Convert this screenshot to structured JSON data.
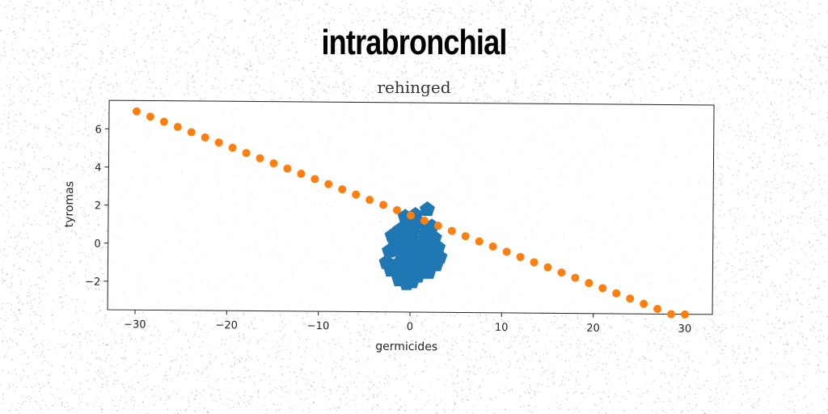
{
  "header": {
    "title": "intrabronchial",
    "subtitle": "rehinged"
  },
  "chart_data": {
    "type": "scatter",
    "title": "rehinged",
    "xlabel": "germicides",
    "ylabel": "tyromas",
    "xlim": [
      -33,
      33
    ],
    "ylim": [
      -3.5,
      7.5
    ],
    "xticks": [
      -30,
      -20,
      -10,
      0,
      10,
      20,
      30
    ],
    "yticks": [
      -2,
      0,
      2,
      4,
      6
    ],
    "grid": false,
    "series": [
      {
        "marker": "pentagon",
        "color": "#1f77b4",
        "points": [
          [
            1.8,
            1.9
          ],
          [
            0.5,
            1.6
          ],
          [
            -0.6,
            1.5
          ],
          [
            -0.4,
            1.1
          ],
          [
            0.9,
            1.2
          ],
          [
            2.3,
            1.0
          ],
          [
            -1.2,
            0.8
          ],
          [
            0.2,
            0.7
          ],
          [
            1.6,
            0.6
          ],
          [
            2.6,
            0.4
          ],
          [
            -2.0,
            0.5
          ],
          [
            -0.9,
            0.3
          ],
          [
            0.6,
            0.2
          ],
          [
            1.9,
            0.1
          ],
          [
            3.0,
            -0.1
          ],
          [
            -1.6,
            0.0
          ],
          [
            -0.3,
            -0.1
          ],
          [
            1.1,
            -0.3
          ],
          [
            2.4,
            -0.4
          ],
          [
            -2.3,
            -0.3
          ],
          [
            -1.0,
            -0.5
          ],
          [
            0.4,
            -0.6
          ],
          [
            1.7,
            -0.8
          ],
          [
            3.2,
            -0.6
          ],
          [
            -2.6,
            -0.9
          ],
          [
            -1.4,
            -1.0
          ],
          [
            0.0,
            -1.1
          ],
          [
            1.3,
            -1.2
          ],
          [
            2.8,
            -1.0
          ],
          [
            -2.1,
            -1.3
          ],
          [
            -0.7,
            -1.5
          ],
          [
            0.8,
            -1.6
          ],
          [
            2.0,
            -1.4
          ],
          [
            -1.2,
            -1.8
          ],
          [
            0.2,
            -1.9
          ],
          [
            -0.4,
            -2.0
          ],
          [
            -0.2,
            0.4
          ],
          [
            0.9,
            -0.1
          ],
          [
            -0.6,
            -0.6
          ],
          [
            0.5,
            -1.0
          ]
        ]
      },
      {
        "marker": "circle",
        "color": "#ff7f0e",
        "points": [
          [
            -30.0,
            6.93
          ],
          [
            -28.5,
            6.66
          ],
          [
            -27.0,
            6.4
          ],
          [
            -25.5,
            6.13
          ],
          [
            -24.0,
            5.86
          ],
          [
            -22.5,
            5.59
          ],
          [
            -21.0,
            5.33
          ],
          [
            -19.5,
            5.06
          ],
          [
            -18.0,
            4.79
          ],
          [
            -16.5,
            4.52
          ],
          [
            -15.0,
            4.26
          ],
          [
            -13.5,
            3.99
          ],
          [
            -12.0,
            3.72
          ],
          [
            -10.5,
            3.45
          ],
          [
            -9.0,
            3.19
          ],
          [
            -7.5,
            2.92
          ],
          [
            -6.0,
            2.65
          ],
          [
            -4.5,
            2.38
          ],
          [
            -3.0,
            2.12
          ],
          [
            -1.5,
            1.85
          ],
          [
            0.0,
            1.58
          ],
          [
            1.5,
            1.31
          ],
          [
            3.0,
            1.05
          ],
          [
            4.5,
            0.78
          ],
          [
            6.0,
            0.51
          ],
          [
            7.5,
            0.24
          ],
          [
            9.0,
            -0.02
          ],
          [
            10.5,
            -0.29
          ],
          [
            12.0,
            -0.56
          ],
          [
            13.5,
            -0.83
          ],
          [
            15.0,
            -1.09
          ],
          [
            16.5,
            -1.36
          ],
          [
            18.0,
            -1.63
          ],
          [
            19.5,
            -1.9
          ],
          [
            21.0,
            -2.16
          ],
          [
            22.5,
            -2.43
          ],
          [
            24.0,
            -2.7
          ],
          [
            25.5,
            -2.97
          ],
          [
            27.0,
            -3.23
          ],
          [
            28.5,
            -3.5
          ],
          [
            30.0,
            -3.51
          ]
        ]
      }
    ]
  }
}
